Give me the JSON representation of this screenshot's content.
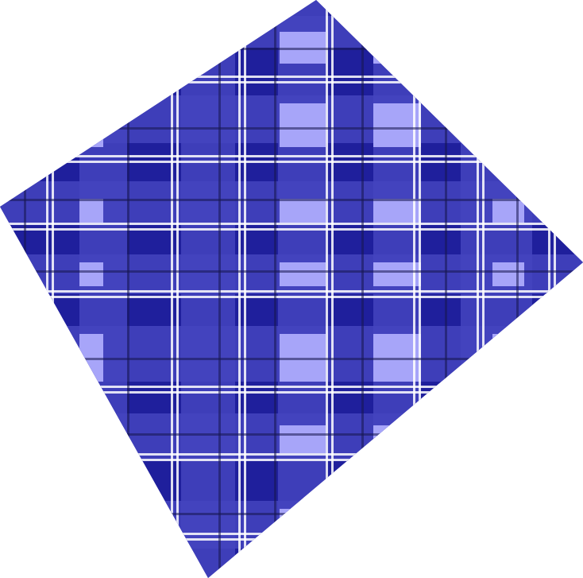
{
  "image": {
    "subject": "plaid-fabric-quadrilateral",
    "background_color": "#ffffff",
    "colors": {
      "base": "#1f1f9c",
      "mid": "#4444be",
      "light": "#b0aefe",
      "stripe_white": "#ffffff",
      "stripe_dark": "#15154f"
    }
  }
}
